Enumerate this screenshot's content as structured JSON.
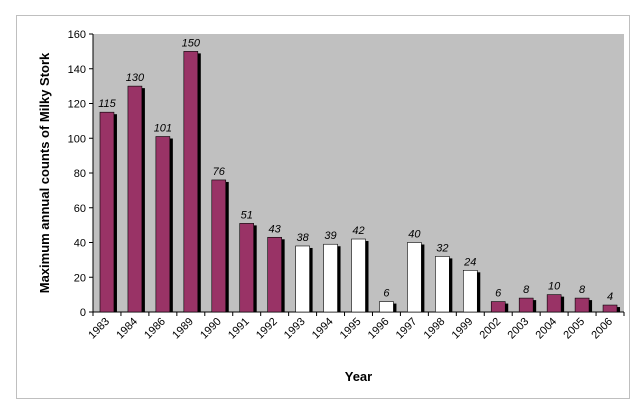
{
  "chart_data": {
    "type": "bar",
    "xlabel": "Year",
    "ylabel": "Maximum annual counts of Milky Stork",
    "ylim": [
      0,
      160
    ],
    "yticks": [
      0,
      20,
      40,
      60,
      80,
      100,
      120,
      140,
      160
    ],
    "grid": false,
    "categories": [
      "1983",
      "1984",
      "1986",
      "1989",
      "1990",
      "1991",
      "1992",
      "1993",
      "1994",
      "1995",
      "1996",
      "1997",
      "1998",
      "1999",
      "2002",
      "2003",
      "2004",
      "2005",
      "2006"
    ],
    "values": [
      115,
      130,
      101,
      150,
      76,
      51,
      43,
      38,
      39,
      42,
      6,
      40,
      32,
      24,
      6,
      8,
      10,
      8,
      4
    ],
    "fills": [
      "purple",
      "purple",
      "purple",
      "purple",
      "purple",
      "purple",
      "purple",
      "white",
      "white",
      "white",
      "white",
      "white",
      "white",
      "white",
      "purple",
      "purple",
      "purple",
      "purple",
      "purple"
    ],
    "colors": {
      "plot_background": "#c0c0c0",
      "purple": "#993366",
      "white": "#ffffff",
      "shadow": "#000000"
    }
  }
}
